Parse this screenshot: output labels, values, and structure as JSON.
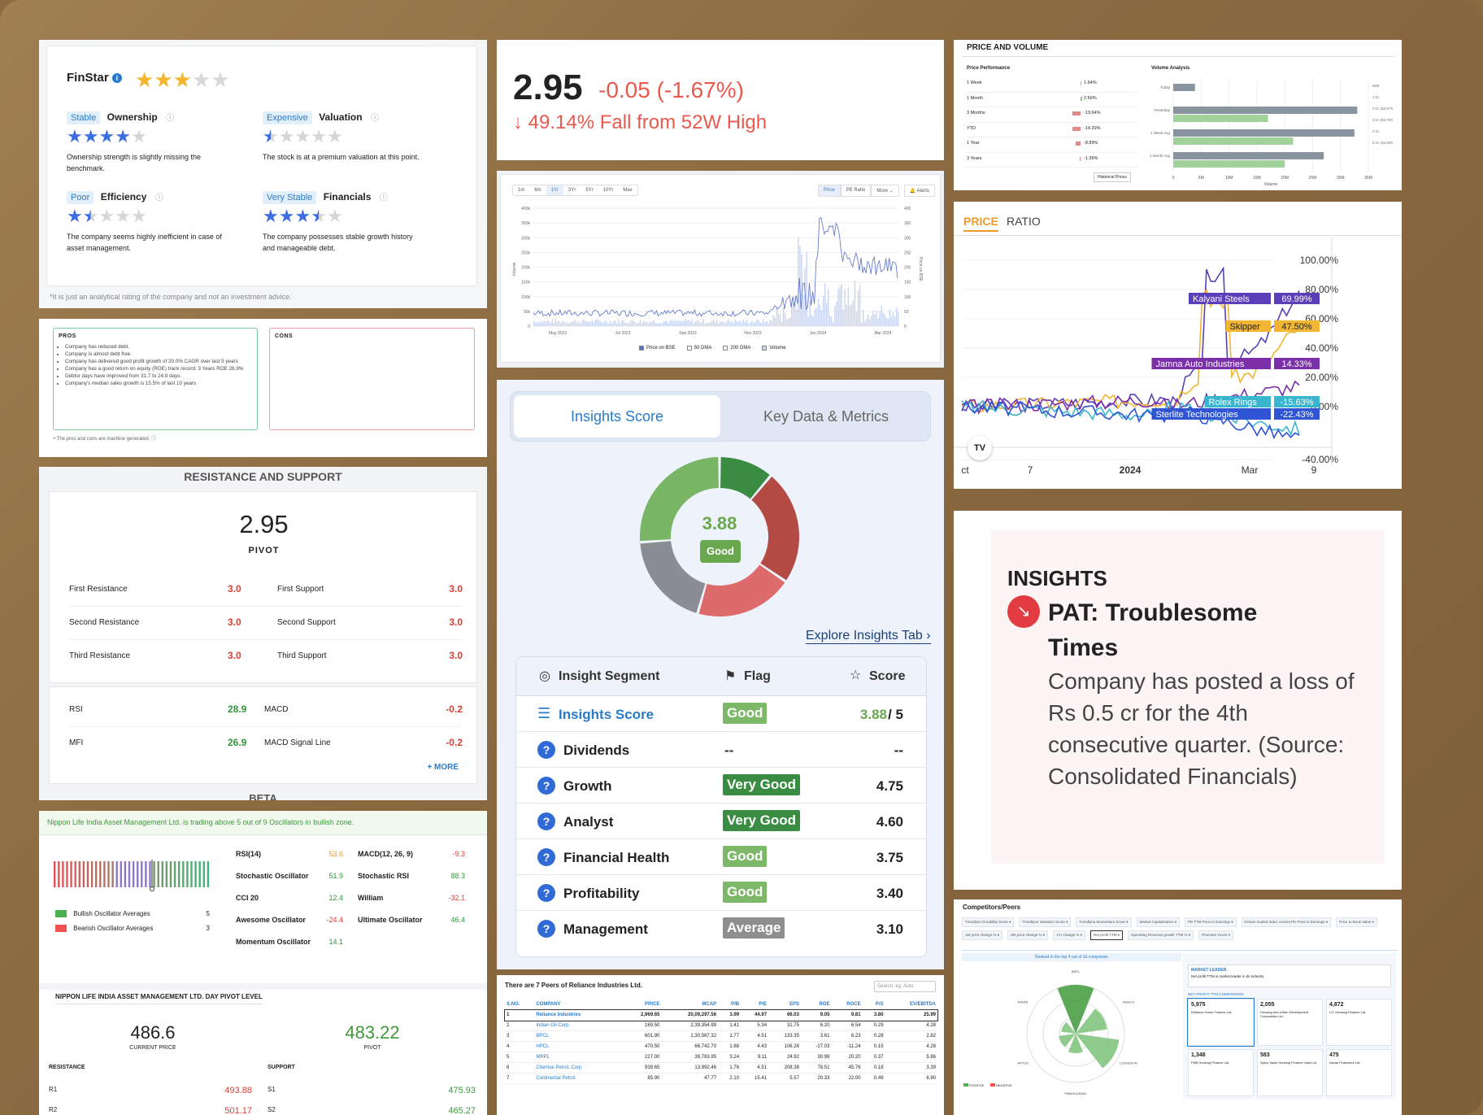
{
  "finstar": {
    "title": "FinStar",
    "footnote": "*It is just an analytical rating of the company and not an investment advice.",
    "cells": [
      {
        "badge": "Stable",
        "label": "Ownership",
        "desc": "Ownership strength is slightly missing the benchmark."
      },
      {
        "badge": "Expensive",
        "label": "Valuation",
        "desc": "The stock is at a premium valuation at this point."
      },
      {
        "badge": "Poor",
        "label": "Efficiency",
        "desc": "The company seems highly inefficient in case of asset management."
      },
      {
        "badge": "Very Stable",
        "label": "Financials",
        "desc": "The company possesses stable growth history and manageable debt."
      }
    ]
  },
  "prosCons": {
    "pros_title": "PROS",
    "cons_title": "CONS",
    "pros": [
      "Company has reduced debt.",
      "Company is almost debt free.",
      "Company has delivered good profit growth of 20.0% CAGR over last 5 years",
      "Company has a good return on equity (ROE) track record: 3 Years ROE 26.9%",
      "Debtor days have improved from 31.7 to 24.8 days.",
      "Company's median sales growth is 15.5% of last 10 years"
    ],
    "footnote": "The pros and cons are machine generated."
  },
  "resistance": {
    "title": "RESISTANCE AND SUPPORT",
    "pivot_value": "2.95",
    "pivot_label": "PIVOT",
    "rows": [
      {
        "rl": "First Resistance",
        "rv": "3.0",
        "sl": "First Support",
        "sv": "3.0"
      },
      {
        "rl": "Second Resistance",
        "rv": "3.0",
        "sl": "Second Support",
        "sv": "3.0"
      },
      {
        "rl": "Third Resistance",
        "rv": "3.0",
        "sl": "Third Support",
        "sv": "3.0"
      }
    ],
    "ind": [
      {
        "l1": "RSI",
        "v1": "28.9",
        "l2": "MACD",
        "v2": "-0.2"
      },
      {
        "l1": "MFI",
        "v1": "26.9",
        "l2": "MACD Signal Line",
        "v2": "-0.2"
      }
    ],
    "more": "+ MORE",
    "beta": "BETA"
  },
  "oscillator": {
    "headline": "Nippon Life India Asset Management Ltd. is trading above 5 out of 9 Oscillators in bullish zone.",
    "bullish": "Bullish Oscillator Averages",
    "bullish_n": "5",
    "bearish": "Bearish Oscillator Averages",
    "bearish_n": "3",
    "left": [
      {
        "l": "RSI(14)",
        "v": "53.6"
      },
      {
        "l": "Stochastic Oscillator",
        "v": "51.9"
      },
      {
        "l": "CCI 20",
        "v": "12.4"
      },
      {
        "l": "Awesome Oscillator",
        "v": "-24.4"
      },
      {
        "l": "Momentum Oscillator",
        "v": "14.1"
      }
    ],
    "right": [
      {
        "l": "MACD(12, 26, 9)",
        "v": "-9.3"
      },
      {
        "l": "Stochastic RSI",
        "v": "88.3"
      },
      {
        "l": "William",
        "v": "-32.1"
      },
      {
        "l": "Ultimate Oscillator",
        "v": "46.4"
      }
    ],
    "pivot_title": "NIPPON LIFE INDIA ASSET MANAGEMENT LTD. DAY PIVOT LEVEL",
    "cur_price": "486.6",
    "cur_label": "CURRENT PRICE",
    "pivot": "483.22",
    "pivot_label": "PIVOT",
    "res_label": "RESISTANCE",
    "sup_label": "SUPPORT",
    "r": [
      {
        "l": "R1",
        "v": "493.88"
      },
      {
        "l": "R2",
        "v": "501.17"
      }
    ],
    "s": [
      {
        "l": "S1",
        "v": "475.93"
      },
      {
        "l": "S2",
        "v": "465.27"
      }
    ]
  },
  "price": {
    "value": "2.95",
    "change": "-0.05 (-1.67%)",
    "fall": "49.14% Fall from 52W High"
  },
  "bse": {
    "ranges": [
      "1m",
      "6m",
      "1Yr",
      "3Yr",
      "5Yr",
      "10Yr",
      "Max"
    ],
    "tabs": [
      "Price",
      "PE Ratio",
      "More",
      "Alerts"
    ],
    "xlabels": [
      "May 2023",
      "Jul 2023",
      "Sep 2023",
      "Nov 2023",
      "Jan 2024",
      "Mar 2024"
    ],
    "vol_ticks": [
      "400k",
      "350k",
      "300k",
      "250k",
      "200k",
      "150k",
      "100k",
      "50k",
      "0"
    ],
    "price_ticks": [
      "400",
      "350",
      "300",
      "250",
      "200",
      "150",
      "100",
      "50",
      "0"
    ],
    "legend": [
      "Price on BSE",
      "50 DMA",
      "200 DMA",
      "Volume"
    ],
    "ylabel_left": "Volume",
    "ylabel_right": "Price on BSE"
  },
  "insights": {
    "tab1": "Insights Score",
    "tab2": "Key Data & Metrics",
    "score": "3.88",
    "grade": "Good",
    "explore": "Explore Insights Tab",
    "head": [
      "Insight Segment",
      "Flag",
      "Score"
    ],
    "rows": [
      {
        "seg": "Insights Score",
        "flag": "Good",
        "score": "3.88",
        "out": "/ 5"
      },
      {
        "seg": "Dividends",
        "flag": "--",
        "score": "--"
      },
      {
        "seg": "Growth",
        "flag": "Very Good",
        "score": "4.75"
      },
      {
        "seg": "Analyst",
        "flag": "Very Good",
        "score": "4.60"
      },
      {
        "seg": "Financial Health",
        "flag": "Good",
        "score": "3.75"
      },
      {
        "seg": "Profitability",
        "flag": "Good",
        "score": "3.40"
      },
      {
        "seg": "Management",
        "flag": "Average",
        "score": "3.10"
      }
    ],
    "colors": {
      "good": "#7cb867",
      "vgood": "#3b8c43",
      "avg": "#8e8e8e"
    }
  },
  "peers": {
    "title": "There are 7 Peers of Reliance Industries Ltd.",
    "search": "Search, eg: Auto",
    "head": [
      "S.NO.",
      "COMPANY",
      "PRICE",
      "MCAP",
      "P/B",
      "P/E",
      "EPS",
      "ROE",
      "ROCE",
      "P/S",
      "EV/EBITDA"
    ],
    "rows": [
      [
        "1",
        "Reliance Industries",
        "2,969.65",
        "20,09,297.56",
        "3.99",
        "44.97",
        "66.03",
        "9.05",
        "9.81",
        "3.80",
        "25.99"
      ],
      [
        "2",
        "Indian Oil Corp.",
        "169.50",
        "2,39,354.99",
        "1.41",
        "5.34",
        "31.75",
        "6.20",
        "6.54",
        "0.29",
        "4.28"
      ],
      [
        "3",
        "BPCL",
        "601.90",
        "1,30,567.32",
        "1.77",
        "4.51",
        "133.35",
        "3.61",
        "6.23",
        "0.28",
        "2.82"
      ],
      [
        "4",
        "HPCL",
        "470.50",
        "66,742.70",
        "1.68",
        "4.43",
        "106.26",
        "-27.03",
        "-11.24",
        "0.15",
        "4.28"
      ],
      [
        "5",
        "MRPL",
        "227.00",
        "39,783.95",
        "3.24",
        "9.11",
        "24.92",
        "30.98",
        "20.20",
        "0.37",
        "5.86"
      ],
      [
        "6",
        "Chennai Petrol. Corp",
        "939.65",
        "13,992.46",
        "1.76",
        "4.51",
        "208.38",
        "78.51",
        "45.76",
        "0.18",
        "3.39"
      ],
      [
        "7",
        "Continental Petrol.",
        "85.90",
        "47.77",
        "2.10",
        "15.41",
        "5.57",
        "20.33",
        "22.00",
        "0.49",
        "6.90"
      ]
    ]
  },
  "volume": {
    "title": "PRICE AND VOLUME",
    "perf_title": "Price Performance",
    "vol_title": "Volume Analysis",
    "perf": [
      {
        "l": "1 Week",
        "v": "1.64%"
      },
      {
        "l": "1 Month",
        "v": "2.50%"
      },
      {
        "l": "3 Months",
        "v": "-13.64%"
      },
      {
        "l": "YTD",
        "v": "-14.20%"
      },
      {
        "l": "1 Year",
        "v": "-8.89%"
      },
      {
        "l": "3 Years",
        "v": "-1.36%"
      }
    ],
    "hist": "Historical Prices",
    "vlabels": [
      "Today",
      "Yesterday",
      "1 Week Avg",
      "1 Month Avg"
    ],
    "vright": [
      "NSE",
      "1 Cr.",
      "2 Cr. (64.47%)",
      "2 Cr. (64.73%)",
      "2 Cr.",
      "2 Cr. (64.03%)"
    ],
    "xticks": [
      "0",
      "5M",
      "10M",
      "15M",
      "20M",
      "25M",
      "30M",
      "35M"
    ],
    "xlabel": "Volume",
    "bars_gray": [
      3.9,
      33,
      32.5,
      27
    ],
    "bars_green": [
      17,
      21.5,
      20
    ],
    "vmax": 35
  },
  "ratio": {
    "tab1": "PRICE",
    "tab2": "RATIO",
    "yticks": [
      "100.00%",
      "80.00%",
      "60.00%",
      "40.00%",
      "20.00%",
      "0.00%",
      "-40.00%"
    ],
    "xticks": [
      "ct",
      "7",
      "2024",
      "Mar",
      "9"
    ],
    "labels": [
      {
        "n": "Kalyani Steels",
        "v": "69.99%",
        "c": "#5b3fb8"
      },
      {
        "n": "Skipper",
        "v": "47.50%",
        "c": "#f2b632"
      },
      {
        "n": "Jamna Auto Industries",
        "v": "14.33%",
        "c": "#7b2fa8"
      },
      {
        "n": "Rolex Rings",
        "v": "-15.63%",
        "c": "#3ab5cf"
      },
      {
        "n": "Sterlite Technologies",
        "v": "-22.43%",
        "c": "#2f55d4"
      }
    ],
    "logo": "TV"
  },
  "insightCard": {
    "title": "INSIGHTS",
    "headline": "PAT: Troublesome Times",
    "body": "Company has posted a loss of Rs 0.5 cr for the 4th consecutive quarter. (Source: Consolidated Financials)"
  },
  "competitors": {
    "title": "Competitors/Peers",
    "ranked": "Ranked in the top 4 out of 10 companies",
    "leader": "MARKET LEADER",
    "leader_desc": "Net profit TTM is market leader in its industry",
    "np": "NET PROFIT TTM COMPARISON",
    "filters": [
      "Trendlyne Durability Score",
      "Trendlyne Valuation Score",
      "Trendlyne Momentum Score",
      "Market Capitalization",
      "PE TTM Price to Earnings",
      "5Years Scaled Index current PE Price to Earnings",
      "Price to Book Value",
      "1M price change %",
      "3M price change %",
      "1Yr change %",
      "Net profit TTM",
      "Operating Revenue growth TTM %",
      "Promoter Score"
    ],
    "cards": [
      {
        "v": "5,975",
        "n": "Reliance Home Finance Ltd."
      },
      {
        "v": "2,055",
        "n": "Housing and Urban Development Corporation Ltd."
      },
      {
        "v": "4,872",
        "n": "LIC Housing Finance Ltd."
      },
      {
        "v": "1,348",
        "n": "PNB Housing Finance Ltd."
      },
      {
        "v": "583",
        "n": "Aptus Value Housing Finance India Ltd."
      },
      {
        "v": "475",
        "n": "Aavas Financiers Ltd."
      }
    ],
    "radar": [
      "BHFL",
      "HUDCO",
      "LICHSGFIN",
      "PNBHOUSING",
      "APTUS",
      "AAVAS"
    ],
    "legend": [
      "POSITIVE",
      "NEGATIVE"
    ]
  }
}
